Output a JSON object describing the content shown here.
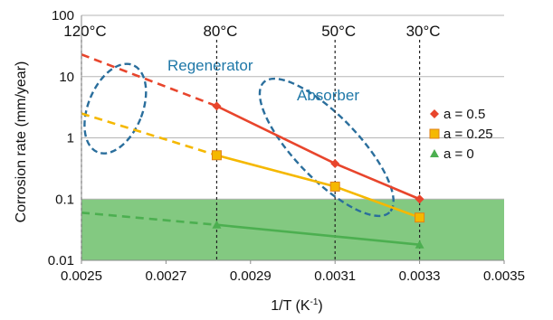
{
  "chart_data": {
    "type": "line",
    "xlabel": "1/T (K",
    "xlabel_sup": "-1",
    "xlabel_close": ")",
    "ylabel": "Corrosion rate (mm/year)",
    "xlim": [
      0.0025,
      0.0035
    ],
    "ylim": [
      0.01,
      100
    ],
    "yscale": "log",
    "x_ticks": [
      0.0025,
      0.0027,
      0.0029,
      0.0031,
      0.0033,
      0.0035
    ],
    "x_tick_labels": [
      "0.0025",
      "0.0027",
      "0.0029",
      "0.0031",
      "0.0033",
      "0.0035"
    ],
    "y_ticks": [
      0.01,
      0.1,
      1,
      10,
      100
    ],
    "y_tick_labels": [
      "0.01",
      "0.1",
      "1",
      "10",
      "100"
    ],
    "grid": "horizontal",
    "legend_position": "right",
    "threshold_band": {
      "y_min": 0.01,
      "y_max": 0.1,
      "color": "#6dbf6b"
    },
    "temperature_lines": [
      {
        "x": 0.0025,
        "label": "120°C"
      },
      {
        "x": 0.00282,
        "label": "80°C"
      },
      {
        "x": 0.0031,
        "label": "50°C"
      },
      {
        "x": 0.0033,
        "label": "30°C"
      }
    ],
    "regions": [
      {
        "label": "Regenerator",
        "center": [
          0.00258,
          3.0
        ]
      },
      {
        "label": "Absorber",
        "center": [
          0.00308,
          0.7
        ]
      }
    ],
    "series": [
      {
        "name": "a = 0.5",
        "color": "#e8452c",
        "marker": "diamond",
        "extrapolated": [
          [
            0.0025,
            23
          ],
          [
            0.00282,
            3.3
          ]
        ],
        "measured": [
          [
            0.00282,
            3.3
          ],
          [
            0.0031,
            0.38
          ],
          [
            0.0033,
            0.1
          ]
        ]
      },
      {
        "name": "a = 0.25",
        "color": "#f5b800",
        "marker": "square",
        "extrapolated": [
          [
            0.0025,
            2.5
          ],
          [
            0.00282,
            0.52
          ]
        ],
        "measured": [
          [
            0.00282,
            0.52
          ],
          [
            0.0031,
            0.16
          ],
          [
            0.0033,
            0.05
          ]
        ]
      },
      {
        "name": "a = 0",
        "color": "#4caf50",
        "marker": "triangle",
        "extrapolated": [
          [
            0.0025,
            0.06
          ],
          [
            0.00282,
            0.038
          ]
        ],
        "measured": [
          [
            0.00282,
            0.038
          ],
          [
            0.0033,
            0.018
          ]
        ]
      }
    ]
  }
}
